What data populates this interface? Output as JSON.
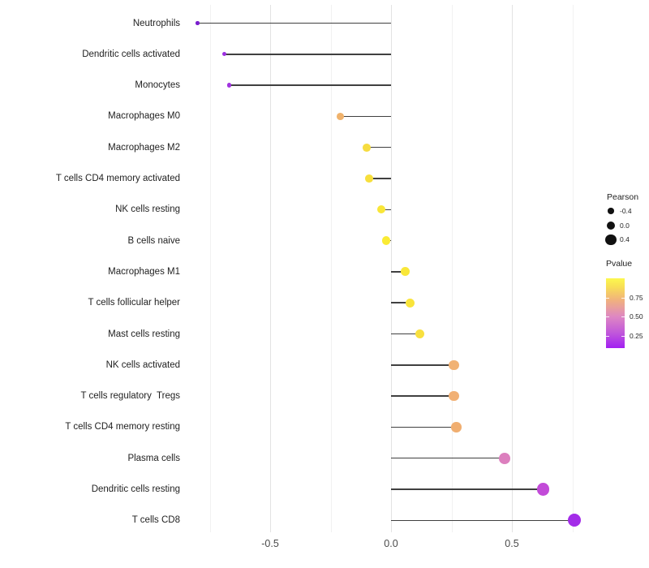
{
  "chart_data": {
    "type": "scatter",
    "subtype": "lollipop",
    "title": "",
    "xlabel": "",
    "ylabel": "",
    "x_axis": {
      "ticks": [
        {
          "label": "-0.5",
          "value": -0.5
        },
        {
          "label": "0.0",
          "value": 0.0
        },
        {
          "label": "0.5",
          "value": 0.5
        }
      ],
      "range": [
        -0.88,
        0.84
      ]
    },
    "grid": {
      "major": [
        -0.5,
        0.0,
        0.5
      ],
      "minor": [
        -0.75,
        -0.25,
        0.25,
        0.75
      ],
      "grid_on": true
    },
    "categories": [
      "Neutrophils",
      "Dendritic cells activated",
      "Monocytes",
      "Macrophages M0",
      "Macrophages M2",
      "T cells CD4 memory activated",
      "NK cells resting",
      "B cells naive",
      "Macrophages M1",
      "T cells follicular helper",
      "Mast cells resting",
      "NK cells activated",
      "T cells regulatory  Tregs",
      "T cells CD4 memory resting",
      "Plasma cells",
      "Dendritic cells resting",
      "T cells CD8"
    ],
    "points": [
      {
        "label": "Neutrophils",
        "pearson": -0.8,
        "pvalue_est": 0.05,
        "color": "#7A1ECE"
      },
      {
        "label": "Dendritic cells activated",
        "pearson": -0.69,
        "pvalue_est": 0.13,
        "color": "#9C2FE0"
      },
      {
        "label": "Monocytes",
        "pearson": -0.67,
        "pvalue_est": 0.14,
        "color": "#A133E0"
      },
      {
        "label": "Macrophages M0",
        "pearson": -0.21,
        "pvalue_est": 0.73,
        "color": "#F0B26C"
      },
      {
        "label": "Macrophages M2",
        "pearson": -0.1,
        "pvalue_est": 0.88,
        "color": "#F6DC40"
      },
      {
        "label": "T cells CD4 memory activated",
        "pearson": -0.09,
        "pvalue_est": 0.89,
        "color": "#F7DF3C"
      },
      {
        "label": "NK cells resting",
        "pearson": -0.04,
        "pvalue_est": 0.92,
        "color": "#F9E638"
      },
      {
        "label": "B cells naive",
        "pearson": -0.02,
        "pvalue_est": 0.95,
        "color": "#FAEB34"
      },
      {
        "label": "Macrophages M1",
        "pearson": 0.06,
        "pvalue_est": 0.91,
        "color": "#F9E739"
      },
      {
        "label": "T cells follicular helper",
        "pearson": 0.08,
        "pvalue_est": 0.9,
        "color": "#F9E43B"
      },
      {
        "label": "Mast cells resting",
        "pearson": 0.12,
        "pvalue_est": 0.86,
        "color": "#F8E03F"
      },
      {
        "label": "NK cells activated",
        "pearson": 0.26,
        "pvalue_est": 0.71,
        "color": "#F1B274"
      },
      {
        "label": "T cells regulatory  Tregs",
        "pearson": 0.26,
        "pvalue_est": 0.71,
        "color": "#F1B074"
      },
      {
        "label": "T cells CD4 memory resting",
        "pearson": 0.27,
        "pvalue_est": 0.7,
        "color": "#F0AE70"
      },
      {
        "label": "Plasma cells",
        "pearson": 0.47,
        "pvalue_est": 0.46,
        "color": "#DC7FBE"
      },
      {
        "label": "Dendritic cells resting",
        "pearson": 0.63,
        "pvalue_est": 0.27,
        "color": "#C24BD8"
      },
      {
        "label": "T cells CD8",
        "pearson": 0.76,
        "pvalue_est": 0.12,
        "color": "#A32CE8"
      }
    ],
    "legend": {
      "position": "right",
      "size": {
        "title": "Pearson",
        "breaks": [
          {
            "label": "-0.4",
            "value": -0.4
          },
          {
            "label": "0.0",
            "value": 0.0
          },
          {
            "label": "0.4",
            "value": 0.4
          }
        ],
        "dot_color": "#111111"
      },
      "color": {
        "title": "Pvalue",
        "ticks": [
          {
            "label": "0.75",
            "value": 0.75
          },
          {
            "label": "0.50",
            "value": 0.5
          },
          {
            "label": "0.25",
            "value": 0.25
          }
        ],
        "bar_range": [
          0.09,
          1.0
        ],
        "gradient_bottom_to_top": [
          {
            "pos": 0,
            "color": "#A21FF2"
          },
          {
            "pos": 22,
            "color": "#C158DA"
          },
          {
            "pos": 45,
            "color": "#DE87C3"
          },
          {
            "pos": 68,
            "color": "#F0B080"
          },
          {
            "pos": 88,
            "color": "#F8DF55"
          },
          {
            "pos": 100,
            "color": "#FCF84E"
          }
        ]
      }
    },
    "style": {
      "stem_color": "#404040",
      "grid_major_color": "#e3e3e3",
      "grid_minor_color": "#f1f1f1",
      "background": "#ffffff"
    }
  }
}
